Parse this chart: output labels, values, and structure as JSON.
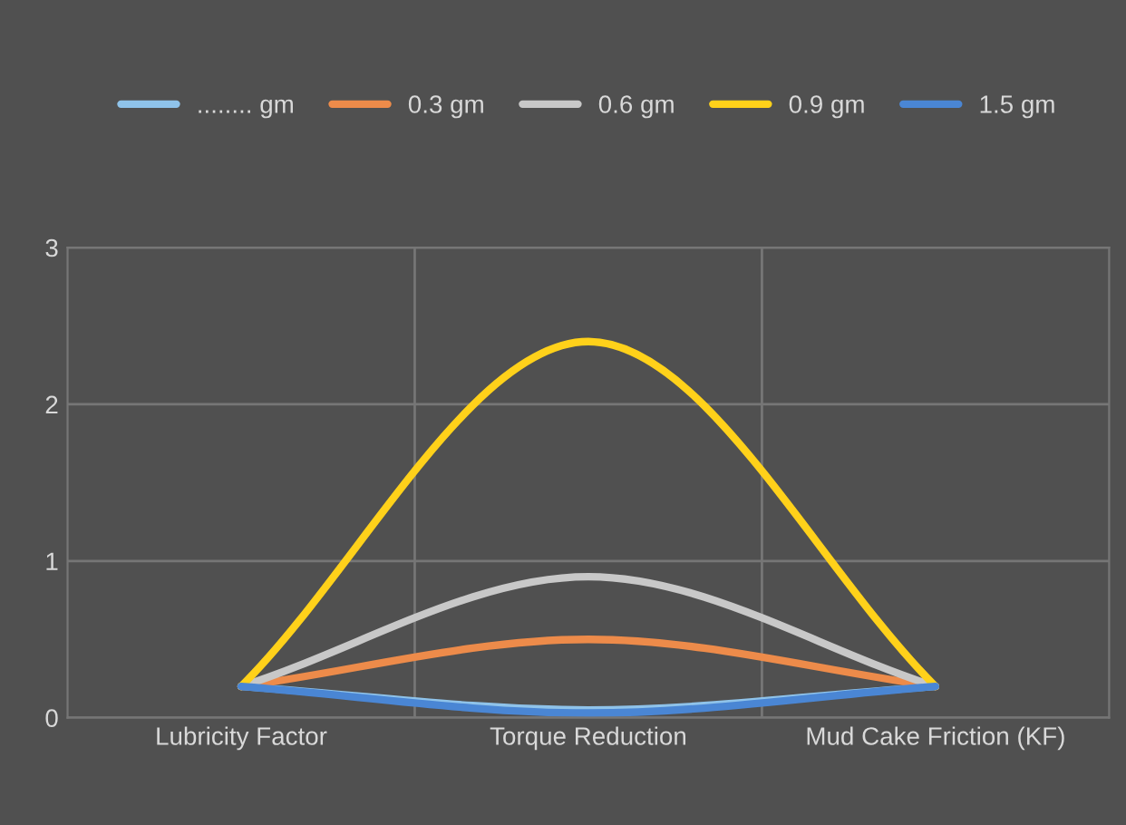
{
  "chart_data": {
    "type": "line",
    "categories": [
      "Lubricity Factor",
      "Torque Reduction",
      "Mud Cake Friction (KF)"
    ],
    "series": [
      {
        "name": "........ gm",
        "color": "#8fc3ea",
        "values": [
          0.2,
          0.05,
          0.2
        ]
      },
      {
        "name": "0.3 gm",
        "color": "#ed8b4a",
        "values": [
          0.2,
          0.5,
          0.2
        ]
      },
      {
        "name": "0.6 gm",
        "color": "#c8c8c8",
        "values": [
          0.2,
          0.9,
          0.2
        ]
      },
      {
        "name": "0.9 gm",
        "color": "#ffd11a",
        "values": [
          0.2,
          2.4,
          0.2
        ]
      },
      {
        "name": "1.5 gm",
        "color": "#4a86d4",
        "values": [
          0.2,
          0.03,
          0.2
        ]
      }
    ],
    "ylim": [
      0,
      3
    ],
    "yticks": [
      0,
      1,
      2,
      3
    ],
    "grid": true,
    "legend": "top",
    "marker": "none",
    "line_style": "solid"
  }
}
